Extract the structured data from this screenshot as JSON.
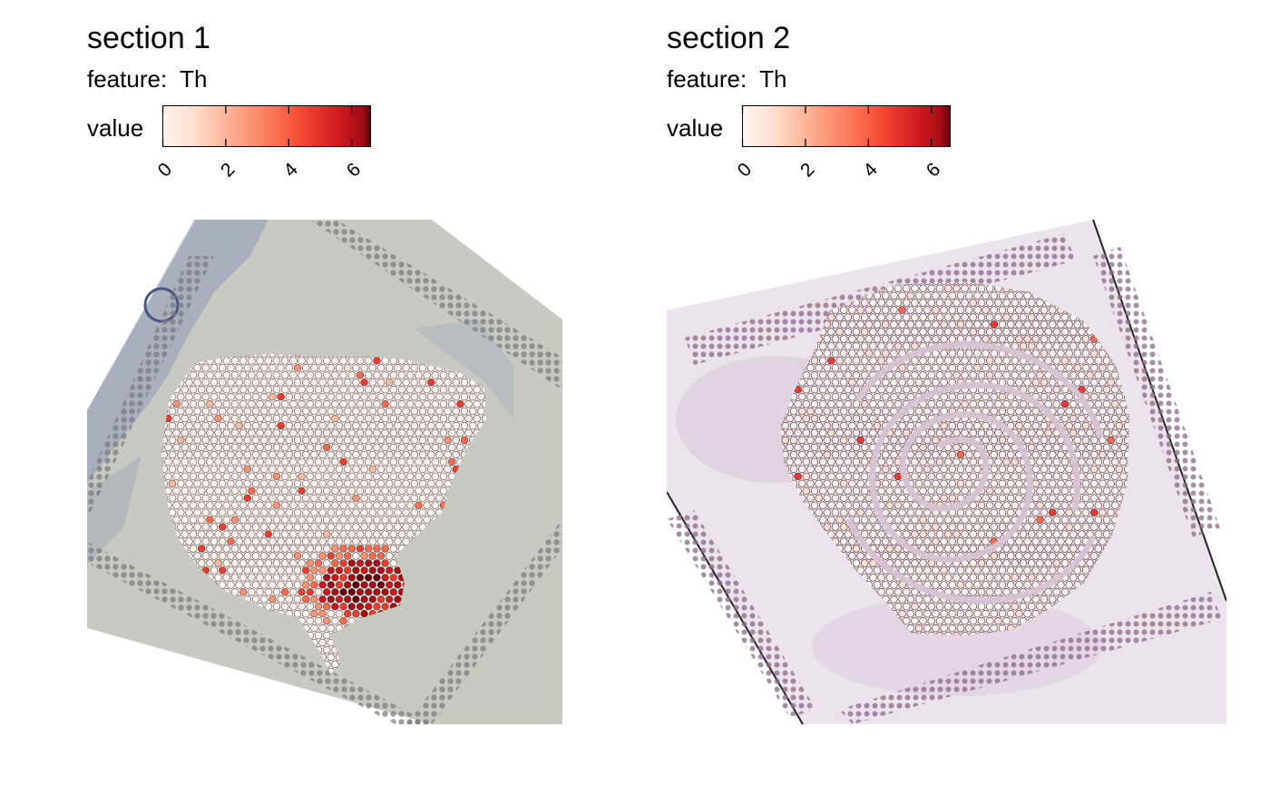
{
  "panels": [
    {
      "title": "section 1",
      "feature_prefix": "feature:",
      "feature": "Th",
      "legend_title": "value",
      "scale": {
        "min": 0,
        "max": 6.6,
        "ticks": [
          "0",
          "2",
          "4",
          "6"
        ],
        "tick_values": [
          0,
          2,
          4,
          6
        ],
        "colors": [
          "#fff5f0",
          "#fcbba1",
          "#fc9272",
          "#fb6a4a",
          "#ef3b2c",
          "#cb181d",
          "#a50f15",
          "#67000d"
        ]
      },
      "tissue_background": "#c9cbc2",
      "stain": "#8e9ab9"
    },
    {
      "title": "section 2",
      "feature_prefix": "feature:",
      "feature": "Th",
      "legend_title": "value",
      "scale": {
        "min": 0,
        "max": 6.6,
        "ticks": [
          "0",
          "2",
          "4",
          "6"
        ],
        "tick_values": [
          0,
          2,
          4,
          6
        ],
        "colors": [
          "#fff5f0",
          "#fcbba1",
          "#fc9272",
          "#fb6a4a",
          "#ef3b2c",
          "#cb181d",
          "#a50f15",
          "#67000d"
        ]
      },
      "tissue_background": "#ece4ec",
      "stain": "#9a6d93"
    }
  ]
}
